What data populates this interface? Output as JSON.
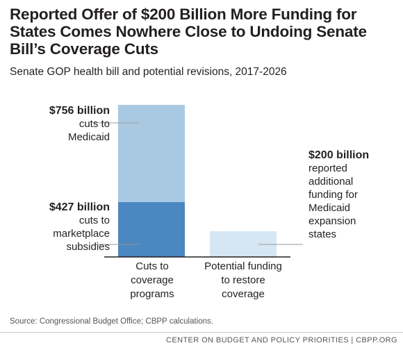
{
  "title": "Reported Offer of $200 Billion More Funding for States Comes Nowhere Close to Undoing Senate Bill’s Coverage Cuts",
  "subtitle": "Senate GOP health bill and potential revisions, 2017-2026",
  "source": "Source: Congressional Budget Office; CBPP calculations.",
  "footer": "CENTER ON BUDGET AND POLICY PRIORITIES | CBPP.ORG",
  "colors": {
    "medicaid_cuts": "#a9c9e3",
    "marketplace_cuts": "#4b87c0",
    "additional_funding": "#d6e6f3",
    "leader_line": "#9a9a9a",
    "baseline": "#231f20"
  },
  "chart_data": {
    "type": "bar",
    "stacked": true,
    "units": "billions of dollars",
    "categories": [
      "Cuts to\ncoverage\nprograms",
      "Potential funding\nto restore\ncoverage"
    ],
    "ylim": [
      0,
      1183
    ],
    "series": [
      {
        "key": "marketplace",
        "name": "cuts to marketplace subsidies",
        "values": [
          427,
          0
        ]
      },
      {
        "key": "medicaid",
        "name": "cuts to Medicaid",
        "values": [
          756,
          0
        ]
      },
      {
        "key": "funding",
        "name": "reported additional funding for Medicaid expansion states",
        "values": [
          0,
          200
        ]
      }
    ],
    "annotations": {
      "medicaid": {
        "value_text": "$756 billion",
        "desc": "cuts to\nMedicaid"
      },
      "marketplace": {
        "value_text": "$427 billion",
        "desc": "cuts to\nmarketplace\nsubsidies"
      },
      "funding": {
        "value_text": "$200 billion",
        "desc": "reported\nadditional\nfunding for\nMedicaid\nexpansion\nstates"
      }
    }
  }
}
